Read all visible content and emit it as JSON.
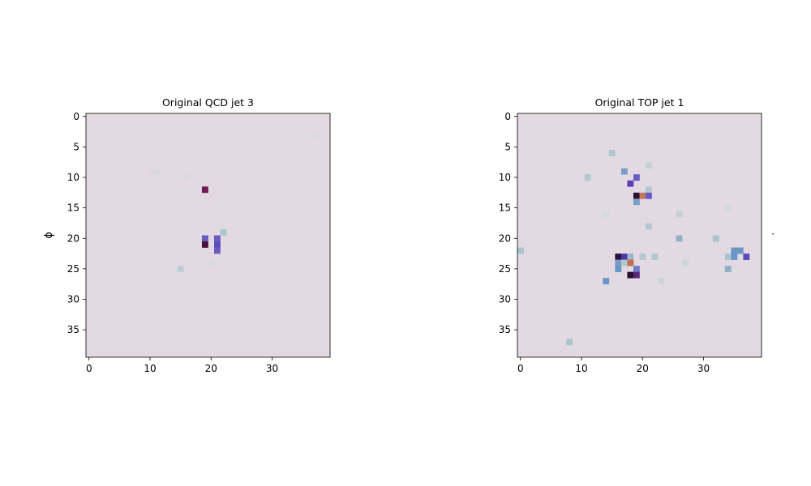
{
  "colors": {
    "background": "#e2d9e2"
  },
  "chart_data": [
    {
      "type": "heatmap",
      "title": "Original QCD jet 3",
      "ylabel": "ϕ",
      "xlabel": "",
      "grid_size": [
        40,
        40
      ],
      "xlim": [
        0,
        39
      ],
      "ylim": [
        39,
        0
      ],
      "xticks": [
        "0",
        "10",
        "20",
        "30"
      ],
      "yticks": [
        "0",
        "5",
        "10",
        "15",
        "20",
        "25",
        "30",
        "35"
      ],
      "grid": false,
      "cells": [
        {
          "x": 19,
          "y": 12,
          "color": "#6e1b4f"
        },
        {
          "x": 22,
          "y": 19,
          "color": "#a8c6ce"
        },
        {
          "x": 19,
          "y": 20,
          "color": "#6a5bc2"
        },
        {
          "x": 21,
          "y": 20,
          "color": "#6a5bc2"
        },
        {
          "x": 19,
          "y": 21,
          "color": "#4a1038"
        },
        {
          "x": 21,
          "y": 21,
          "color": "#5a4cbc"
        },
        {
          "x": 21,
          "y": 22,
          "color": "#6a5bc2"
        },
        {
          "x": 15,
          "y": 25,
          "color": "#bcd0d3"
        },
        {
          "x": 20,
          "y": 24,
          "color": "#d6dadf"
        },
        {
          "x": 10,
          "y": 9,
          "color": "#dcd8e1"
        },
        {
          "x": 11,
          "y": 9,
          "color": "#dcd8e1"
        },
        {
          "x": 16,
          "y": 10,
          "color": "#dcd8e1"
        },
        {
          "x": 37,
          "y": 3,
          "color": "#dcd8e1"
        }
      ]
    },
    {
      "type": "heatmap",
      "title": "Original TOP jet 1",
      "ylabel": "",
      "xlabel": "",
      "grid_size": [
        40,
        40
      ],
      "xlim": [
        0,
        39
      ],
      "ylim": [
        39,
        0
      ],
      "xticks": [
        "0",
        "10",
        "20",
        "30"
      ],
      "yticks": [
        "0",
        "5",
        "10",
        "15",
        "20",
        "25",
        "30",
        "35"
      ],
      "grid": false,
      "cells": [
        {
          "x": 15,
          "y": 6,
          "color": "#b2c8d0"
        },
        {
          "x": 21,
          "y": 8,
          "color": "#c0d2d4"
        },
        {
          "x": 17,
          "y": 9,
          "color": "#7a9cc6"
        },
        {
          "x": 11,
          "y": 10,
          "color": "#b2c8d0"
        },
        {
          "x": 19,
          "y": 10,
          "color": "#6a5bc2"
        },
        {
          "x": 18,
          "y": 11,
          "color": "#5b3fb0"
        },
        {
          "x": 21,
          "y": 12,
          "color": "#b2c8d0"
        },
        {
          "x": 19,
          "y": 13,
          "color": "#2a0f2f"
        },
        {
          "x": 20,
          "y": 13,
          "color": "#c07a62"
        },
        {
          "x": 21,
          "y": 13,
          "color": "#6a5bc2"
        },
        {
          "x": 19,
          "y": 14,
          "color": "#7aa0c8"
        },
        {
          "x": 14,
          "y": 16,
          "color": "#d2dade"
        },
        {
          "x": 26,
          "y": 16,
          "color": "#c0d2d4"
        },
        {
          "x": 34,
          "y": 15,
          "color": "#d6dadf"
        },
        {
          "x": 21,
          "y": 18,
          "color": "#b2c8d0"
        },
        {
          "x": 26,
          "y": 20,
          "color": "#8fb0c6"
        },
        {
          "x": 32,
          "y": 20,
          "color": "#a8c4cc"
        },
        {
          "x": 0,
          "y": 22,
          "color": "#a8c4cc"
        },
        {
          "x": 35,
          "y": 22,
          "color": "#6a96c4"
        },
        {
          "x": 36,
          "y": 22,
          "color": "#6a96c4"
        },
        {
          "x": 16,
          "y": 23,
          "color": "#2a0f3f"
        },
        {
          "x": 17,
          "y": 23,
          "color": "#4a3aa8"
        },
        {
          "x": 18,
          "y": 23,
          "color": "#9ab8cc"
        },
        {
          "x": 20,
          "y": 23,
          "color": "#b2c8d0"
        },
        {
          "x": 22,
          "y": 23,
          "color": "#b2c8d0"
        },
        {
          "x": 34,
          "y": 23,
          "color": "#a8c4cc"
        },
        {
          "x": 35,
          "y": 23,
          "color": "#6a96c4"
        },
        {
          "x": 37,
          "y": 23,
          "color": "#5a4cbc"
        },
        {
          "x": 16,
          "y": 24,
          "color": "#7a9cc6"
        },
        {
          "x": 17,
          "y": 24,
          "color": "#b2c8d0"
        },
        {
          "x": 18,
          "y": 24,
          "color": "#c0704e"
        },
        {
          "x": 27,
          "y": 24,
          "color": "#c8d6d8"
        },
        {
          "x": 16,
          "y": 25,
          "color": "#6a96c4"
        },
        {
          "x": 19,
          "y": 25,
          "color": "#6a7ec6"
        },
        {
          "x": 34,
          "y": 25,
          "color": "#8fb0c6"
        },
        {
          "x": 18,
          "y": 26,
          "color": "#2a0f2f"
        },
        {
          "x": 19,
          "y": 26,
          "color": "#5a2878"
        },
        {
          "x": 14,
          "y": 27,
          "color": "#6a96c4"
        },
        {
          "x": 23,
          "y": 27,
          "color": "#c8d6d8"
        },
        {
          "x": 8,
          "y": 37,
          "color": "#a8c4cc"
        }
      ]
    }
  ],
  "right_mark": "·"
}
